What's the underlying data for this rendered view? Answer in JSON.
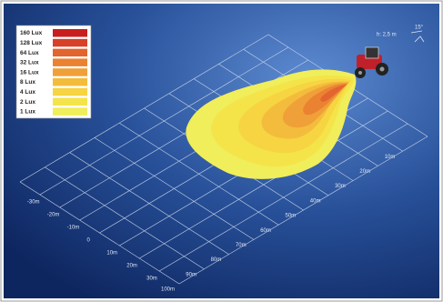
{
  "legend": {
    "items": [
      {
        "label": "160 Lux",
        "color": "#c81e1e"
      },
      {
        "label": "128 Lux",
        "color": "#d8402a"
      },
      {
        "label": "64 Lux",
        "color": "#e2642e"
      },
      {
        "label": "32 Lux",
        "color": "#ea8232"
      },
      {
        "label": "16 Lux",
        "color": "#f0a038"
      },
      {
        "label": "8 Lux",
        "color": "#f4bc3c"
      },
      {
        "label": "4 Lux",
        "color": "#f6d442"
      },
      {
        "label": "2 Lux",
        "color": "#f4e44a"
      },
      {
        "label": "1 Lux",
        "color": "#f0ee5a"
      }
    ]
  },
  "mounting": {
    "height": "h: 2,5 m",
    "angle": "15°"
  },
  "distance_labels": [
    "10m",
    "20m",
    "30m",
    "40m",
    "50m",
    "60m",
    "70m",
    "80m",
    "90m",
    "100m"
  ],
  "width_labels": [
    "-30m",
    "-20m",
    "-10m",
    "0",
    "10m",
    "20m",
    "30m"
  ]
}
